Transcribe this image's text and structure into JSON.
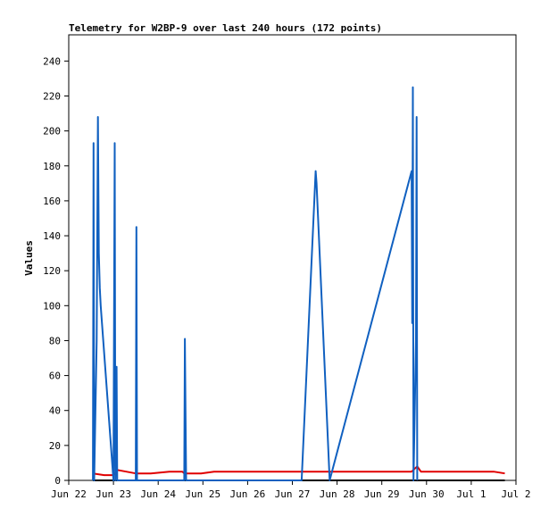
{
  "chart_data": {
    "type": "line",
    "title": "Telemetry for W2BP-9 over last 240 hours (172 points)",
    "xlabel": "",
    "ylabel": "Values",
    "ylim": [
      0,
      255
    ],
    "yticks": [
      0,
      20,
      40,
      60,
      80,
      100,
      120,
      140,
      160,
      180,
      200,
      220,
      240
    ],
    "xlim": [
      "2024-06-22 00:00",
      "2024-07-02 00:00"
    ],
    "xticks": [
      {
        "date": "2024-06-22",
        "label": "Jun 22"
      },
      {
        "date": "2024-06-23",
        "label": "Jun 23"
      },
      {
        "date": "2024-06-24",
        "label": "Jun 24"
      },
      {
        "date": "2024-06-25",
        "label": "Jun 25"
      },
      {
        "date": "2024-06-26",
        "label": "Jun 26"
      },
      {
        "date": "2024-06-27",
        "label": "Jun 27"
      },
      {
        "date": "2024-06-28",
        "label": "Jun 28"
      },
      {
        "date": "2024-06-29",
        "label": "Jun 29"
      },
      {
        "date": "2024-06-30",
        "label": "Jun 30"
      },
      {
        "date": "2024-07-01",
        "label": "Jul 1"
      },
      {
        "date": "2024-07-02",
        "label": "Jul 2"
      }
    ],
    "grid": false,
    "series": [
      {
        "color": "#e00000",
        "points": [
          [
            "2024-06-22 13:00",
            4
          ],
          [
            "2024-06-22 19:00",
            3
          ],
          [
            "2024-06-23 00:00",
            3
          ],
          [
            "2024-06-23 02:00",
            6
          ],
          [
            "2024-06-23 12:00",
            4
          ],
          [
            "2024-06-23 20:00",
            4
          ],
          [
            "2024-06-24 06:00",
            5
          ],
          [
            "2024-06-24 13:00",
            5
          ],
          [
            "2024-06-24 14:00",
            4
          ],
          [
            "2024-06-24 23:00",
            4
          ],
          [
            "2024-06-25 06:00",
            5
          ],
          [
            "2024-06-26 12:00",
            5
          ],
          [
            "2024-06-27 23:00",
            5
          ],
          [
            "2024-06-28 12:00",
            5
          ],
          [
            "2024-06-29 16:00",
            5
          ],
          [
            "2024-06-29 19:00",
            8
          ],
          [
            "2024-06-29 21:00",
            5
          ],
          [
            "2024-07-01 12:00",
            5
          ],
          [
            "2024-07-01 18:00",
            4
          ]
        ]
      },
      {
        "color": "#000000",
        "points": [
          [
            "2024-06-22 13:00",
            0
          ],
          [
            "2024-07-01 18:00",
            0
          ]
        ]
      },
      {
        "color": "#1060c0",
        "points": [
          [
            "2024-06-22 13:00",
            0
          ],
          [
            "2024-06-22 13:20",
            193
          ],
          [
            "2024-06-22 13:40",
            0
          ],
          [
            "2024-06-22 15:00",
            80
          ],
          [
            "2024-06-22 15:40",
            208
          ],
          [
            "2024-06-22 16:10",
            130
          ],
          [
            "2024-06-22 16:40",
            110
          ],
          [
            "2024-06-22 17:10",
            100
          ],
          [
            "2024-06-23 00:00",
            0
          ],
          [
            "2024-06-23 00:40",
            193
          ],
          [
            "2024-06-23 01:00",
            0
          ],
          [
            "2024-06-23 01:20",
            30
          ],
          [
            "2024-06-23 01:40",
            65
          ],
          [
            "2024-06-23 02:00",
            0
          ],
          [
            "2024-06-23 12:00",
            0
          ],
          [
            "2024-06-23 12:20",
            145
          ],
          [
            "2024-06-23 12:40",
            0
          ],
          [
            "2024-06-24 14:00",
            0
          ],
          [
            "2024-06-24 14:20",
            81
          ],
          [
            "2024-06-24 14:40",
            40
          ],
          [
            "2024-06-24 15:00",
            0
          ],
          [
            "2024-06-27 05:00",
            0
          ],
          [
            "2024-06-27 12:30",
            177
          ],
          [
            "2024-06-27 13:00",
            170
          ],
          [
            "2024-06-27 20:00",
            0
          ],
          [
            "2024-06-29 16:00",
            177
          ],
          [
            "2024-06-29 16:20",
            90
          ],
          [
            "2024-06-29 16:40",
            225
          ],
          [
            "2024-06-29 17:00",
            0
          ],
          [
            "2024-06-29 18:20",
            80
          ],
          [
            "2024-06-29 18:40",
            208
          ],
          [
            "2024-06-29 19:00",
            0
          ]
        ]
      }
    ]
  }
}
